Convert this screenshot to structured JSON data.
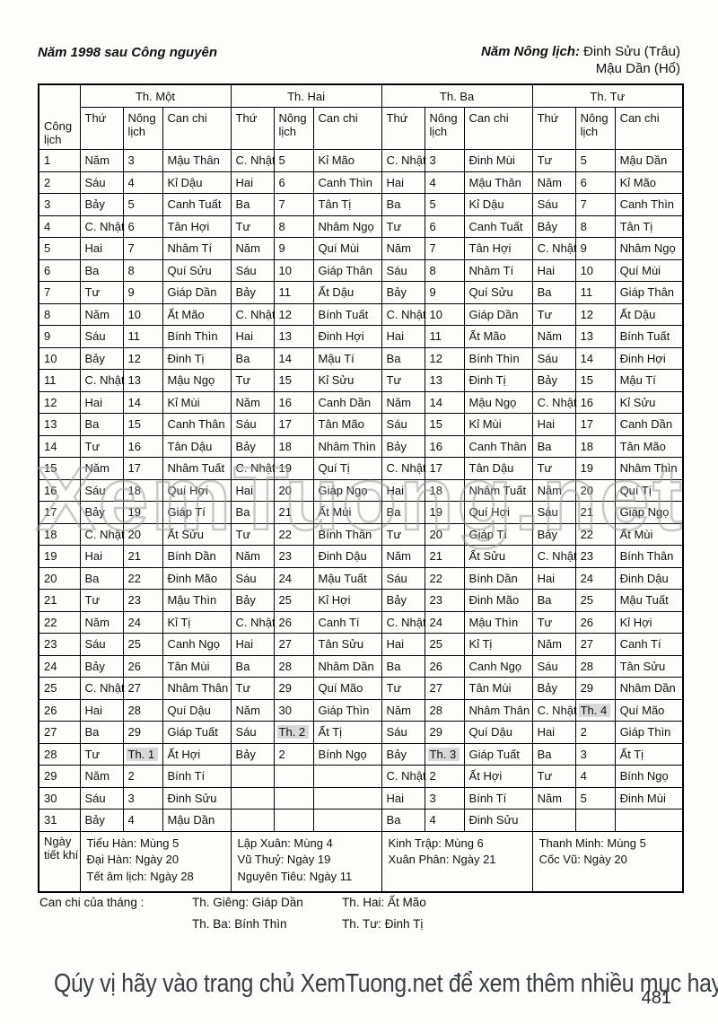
{
  "header": {
    "solar_year_title": "Năm 1998 sau Công nguyên",
    "lunar_year_label": "Năm Nông lịch:",
    "lunar_year_value1": "Đinh Sửu (Trâu)",
    "lunar_year_value2": "Mậu Dần (Hổ)"
  },
  "table": {
    "corner_header": "Công lịch",
    "month_headers": [
      "Th. Một",
      "Th. Hai",
      "Th. Ba",
      "Th. Tư"
    ],
    "sub_headers": [
      "Thứ",
      "Nông lịch",
      "Can chi"
    ],
    "rows": [
      [
        "1",
        "Năm",
        "3",
        "Mậu Thân",
        "C. Nhật",
        "5",
        "Kỉ Mão",
        "C. Nhật",
        "3",
        "Đinh Mùi",
        "Tư",
        "5",
        "Mậu Dần"
      ],
      [
        "2",
        "Sáu",
        "4",
        "Kỉ Dậu",
        "Hai",
        "6",
        "Canh Thìn",
        "Hai",
        "4",
        "Mậu Thân",
        "Năm",
        "6",
        "Kỉ Mão"
      ],
      [
        "3",
        "Bảy",
        "5",
        "Canh Tuất",
        "Ba",
        "7",
        "Tân Tị",
        "Ba",
        "5",
        "Kỉ Dậu",
        "Sáu",
        "7",
        "Canh Thìn"
      ],
      [
        "4",
        "C. Nhật",
        "6",
        "Tân Hợi",
        "Tư",
        "8",
        "Nhâm Ngọ",
        "Tư",
        "6",
        "Canh Tuất",
        "Bảy",
        "8",
        "Tân Tị"
      ],
      [
        "5",
        "Hai",
        "7",
        "Nhâm Tí",
        "Năm",
        "9",
        "Quí Mùi",
        "Năm",
        "7",
        "Tân Hợi",
        "C. Nhật",
        "9",
        "Nhâm Ngọ"
      ],
      [
        "6",
        "Ba",
        "8",
        "Quí Sửu",
        "Sáu",
        "10",
        "Giáp Thân",
        "Sáu",
        "8",
        "Nhâm Tí",
        "Hai",
        "10",
        "Quí Mùi"
      ],
      [
        "7",
        "Tư",
        "9",
        "Giáp Dần",
        "Bảy",
        "11",
        "Ất Dậu",
        "Bảy",
        "9",
        "Quí Sửu",
        "Ba",
        "11",
        "Giáp Thân"
      ],
      [
        "8",
        "Năm",
        "10",
        "Ất Mão",
        "C. Nhật",
        "12",
        "Bính Tuất",
        "C. Nhật",
        "10",
        "Giáp Dần",
        "Tư",
        "12",
        "Ất Dậu"
      ],
      [
        "9",
        "Sáu",
        "11",
        "Bính Thìn",
        "Hai",
        "13",
        "Đinh Hợi",
        "Hai",
        "11",
        "Ất Mão",
        "Năm",
        "13",
        "Bính Tuất"
      ],
      [
        "10",
        "Bảy",
        "12",
        "Đinh Tị",
        "Ba",
        "14",
        "Mậu Tí",
        "Ba",
        "12",
        "Bính Thìn",
        "Sáu",
        "14",
        "Đinh Hợi"
      ],
      [
        "11",
        "C. Nhật",
        "13",
        "Mậu Ngọ",
        "Tư",
        "15",
        "Kỉ Sửu",
        "Tư",
        "13",
        "Đinh Tị",
        "Bảy",
        "15",
        "Mậu Tí"
      ],
      [
        "12",
        "Hai",
        "14",
        "Kỉ Mùi",
        "Năm",
        "16",
        "Canh Dần",
        "Năm",
        "14",
        "Mậu Ngọ",
        "C. Nhật",
        "16",
        "Kỉ Sửu"
      ],
      [
        "13",
        "Ba",
        "15",
        "Canh Thân",
        "Sáu",
        "17",
        "Tân Mão",
        "Sáu",
        "15",
        "Kỉ Mùi",
        "Hai",
        "17",
        "Canh Dần"
      ],
      [
        "14",
        "Tư",
        "16",
        "Tân Dậu",
        "Bảy",
        "18",
        "Nhâm Thìn",
        "Bảy",
        "16",
        "Canh Thân",
        "Ba",
        "18",
        "Tân Mão"
      ],
      [
        "15",
        "Năm",
        "17",
        "Nhâm Tuất",
        "C. Nhật",
        "19",
        "Quí Tị",
        "C. Nhật",
        "17",
        "Tân Dậu",
        "Tư",
        "19",
        "Nhâm Thìn"
      ],
      [
        "16",
        "Sáu",
        "18",
        "Quí Hợi",
        "Hai",
        "20",
        "Giáp Ngọ",
        "Hai",
        "18",
        "Nhâm Tuất",
        "Năm",
        "20",
        "Quí Tị"
      ],
      [
        "17",
        "Bảy",
        "19",
        "Giáp Tí",
        "Ba",
        "21",
        "Ất Mùi",
        "Ba",
        "19",
        "Quí Hợi",
        "Sáu",
        "21",
        "Giáp Ngọ"
      ],
      [
        "18",
        "C. Nhật",
        "20",
        "Ất Sửu",
        "Tư",
        "22",
        "Bính Thân",
        "Tư",
        "20",
        "Giáp Tí",
        "Bảy",
        "22",
        "Ất Mùi"
      ],
      [
        "19",
        "Hai",
        "21",
        "Bính Dần",
        "Năm",
        "23",
        "Đinh Dậu",
        "Năm",
        "21",
        "Ất Sửu",
        "C. Nhật",
        "23",
        "Bính Thân"
      ],
      [
        "20",
        "Ba",
        "22",
        "Đinh Mão",
        "Sáu",
        "24",
        "Mậu Tuất",
        "Sáu",
        "22",
        "Bính Dần",
        "Hai",
        "24",
        "Đinh Dậu"
      ],
      [
        "21",
        "Tư",
        "23",
        "Mậu Thìn",
        "Bảy",
        "25",
        "Kỉ Hợi",
        "Bảy",
        "23",
        "Đinh Mão",
        "Ba",
        "25",
        "Mậu Tuất"
      ],
      [
        "22",
        "Năm",
        "24",
        "Kỉ Tị",
        "C. Nhật",
        "26",
        "Canh Tí",
        "C. Nhật",
        "24",
        "Mậu Thìn",
        "Tư",
        "26",
        "Kỉ Hợi"
      ],
      [
        "23",
        "Sáu",
        "25",
        "Canh Ngọ",
        "Hai",
        "27",
        "Tân Sửu",
        "Hai",
        "25",
        "Kỉ Tị",
        "Năm",
        "27",
        "Canh Tí"
      ],
      [
        "24",
        "Bảy",
        "26",
        "Tân Mùi",
        "Ba",
        "28",
        "Nhâm Dần",
        "Ba",
        "26",
        "Canh Ngọ",
        "Sáu",
        "28",
        "Tân Sửu"
      ],
      [
        "25",
        "C. Nhật",
        "27",
        "Nhâm Thân",
        "Tư",
        "29",
        "Quí Mão",
        "Tư",
        "27",
        "Tân Mùi",
        "Bảy",
        "29",
        "Nhâm Dần"
      ],
      [
        "26",
        "Hai",
        "28",
        "Quí Dậu",
        "Năm",
        "30",
        "Giáp Thìn",
        "Năm",
        "28",
        "Nhâm Thân",
        "C. Nhật",
        "Th. 4",
        "Quí Mão"
      ],
      [
        "27",
        "Ba",
        "29",
        "Giáp Tuất",
        "Sáu",
        "Th. 2",
        "Ất Tị",
        "Sáu",
        "29",
        "Quí Dậu",
        "Hai",
        "2",
        "Giáp Thìn"
      ],
      [
        "28",
        "Tư",
        "Th. 1",
        "Ất Hợi",
        "Bảy",
        "2",
        "Bính Ngọ",
        "Bảy",
        "Th. 3",
        "Giáp Tuất",
        "Ba",
        "3",
        "Ất Tị"
      ],
      [
        "29",
        "Năm",
        "2",
        "Bính Tí",
        "",
        "",
        "",
        "C. Nhật",
        "2",
        "Ất Hợi",
        "Tư",
        "4",
        "Bính Ngọ"
      ],
      [
        "30",
        "Sáu",
        "3",
        "Đinh Sửu",
        "",
        "",
        "",
        "Hai",
        "3",
        "Bính Tí",
        "Năm",
        "5",
        "Đinh Mùi"
      ],
      [
        "31",
        "Bảy",
        "4",
        "Mậu Dần",
        "",
        "",
        "",
        "Ba",
        "4",
        "Đinh Sửu",
        "",
        "",
        ""
      ]
    ],
    "solar_term_label": "Ngày tiết khí",
    "solar_terms": [
      [
        "Tiểu Hàn: Mùng 5",
        "Đại Hàn: Ngày 20",
        "Tết âm lịch: Ngày 28"
      ],
      [
        "Lập Xuân: Mùng 4",
        "Vũ Thuỷ: Ngày 19",
        "Nguyên Tiêu: Ngày 11"
      ],
      [
        "Kinh Trập: Mùng 6",
        "Xuân Phân: Ngày 21"
      ],
      [
        "Thanh Minh: Mùng 5",
        "Cốc Vũ: Ngày 20"
      ]
    ]
  },
  "month_canchi": {
    "label": "Can chi của tháng :",
    "pairs": [
      [
        "Th. Giêng: Giáp Dần",
        "Th. Hai: Ất Mão"
      ],
      [
        "Th. Ba: Bính Thìn",
        "Th. Tư: Đinh Tị"
      ]
    ]
  },
  "watermark_text": "XemTuong.net",
  "footer": {
    "prefix": "Qúy vị hãy vào trang chủ ",
    "site": "XemTuong.net",
    "suffix": " để xem thêm nhiều mục hay khác"
  },
  "page_number": "481",
  "colors": {
    "highlight_cell": "#d8d8d8",
    "watermark": "#a0a0a0",
    "border": "#000000",
    "footer_text": "#383e44"
  }
}
